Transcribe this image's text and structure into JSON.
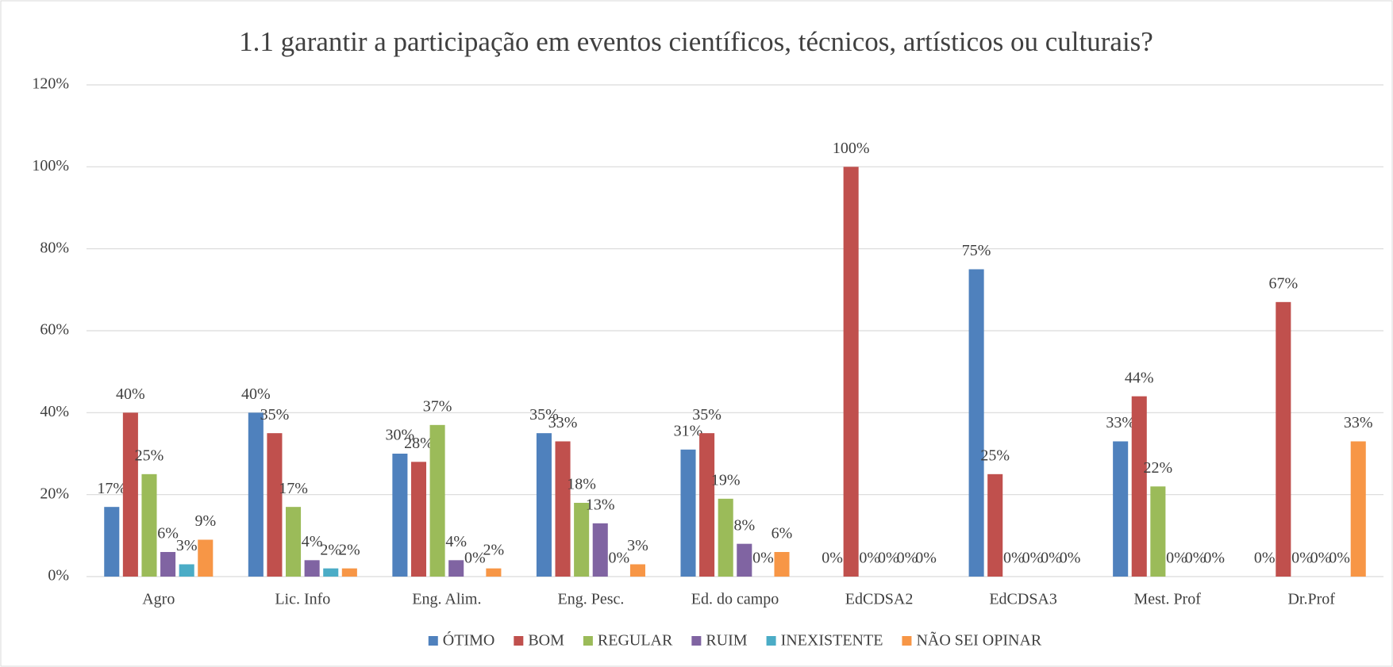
{
  "chart_data": {
    "type": "bar",
    "title": "1.1 garantir a participação em eventos científicos, técnicos, artísticos ou culturais?",
    "categories": [
      "Agro",
      "Lic. Info",
      "Eng. Alim.",
      "Eng. Pesc.",
      "Ed. do campo",
      "EdCDSA2",
      "EdCDSA3",
      "Mest. Prof",
      "Dr.Prof"
    ],
    "series": [
      {
        "name": "ÓTIMO",
        "color": "#4f81bd",
        "values": [
          17,
          40,
          30,
          35,
          31,
          0,
          75,
          33,
          0
        ],
        "value_labels": [
          "17%",
          "40%",
          "30%",
          "35%",
          "31%",
          "0%",
          "75%",
          "33%",
          "0%"
        ]
      },
      {
        "name": "BOM",
        "color": "#c0504d",
        "values": [
          40,
          35,
          28,
          33,
          35,
          100,
          25,
          44,
          67
        ],
        "value_labels": [
          "40%",
          "35%",
          "28%",
          "33%",
          "35%",
          "100%",
          "25%",
          "44%",
          "67%"
        ]
      },
      {
        "name": "REGULAR",
        "color": "#9bbb59",
        "values": [
          25,
          17,
          37,
          18,
          19,
          0,
          0,
          22,
          0
        ],
        "value_labels": [
          "25%",
          "17%",
          "37%",
          "18%",
          "19%",
          "0%",
          "0%",
          "22%",
          "0%"
        ]
      },
      {
        "name": "RUIM",
        "color": "#8064a2",
        "values": [
          6,
          4,
          4,
          13,
          8,
          0,
          0,
          0,
          0
        ],
        "value_labels": [
          "6%",
          "4%",
          "4%",
          "13%",
          "8%",
          "0%",
          "0%",
          "0%",
          "0%"
        ]
      },
      {
        "name": "INEXISTENTE",
        "color": "#4bacc6",
        "values": [
          3,
          2,
          0,
          0,
          0,
          0,
          0,
          0,
          0
        ],
        "value_labels": [
          "3%",
          "2%",
          "0%",
          "0%",
          "0%",
          "0%",
          "0%",
          "0%",
          "0%"
        ]
      },
      {
        "name": "NÃO SEI OPINAR",
        "color": "#f79646",
        "values": [
          9,
          2,
          2,
          3,
          6,
          0,
          0,
          0,
          33
        ],
        "value_labels": [
          "9%",
          "2%",
          "2%",
          "3%",
          "6%",
          "0%",
          "0%",
          "0%",
          "33%"
        ]
      }
    ],
    "ylim": [
      0,
      120
    ],
    "yticks": [
      {
        "value": 0,
        "label": "0%"
      },
      {
        "value": 20,
        "label": "20%"
      },
      {
        "value": 40,
        "label": "40%"
      },
      {
        "value": 60,
        "label": "60%"
      },
      {
        "value": 80,
        "label": "80%"
      },
      {
        "value": 100,
        "label": "100%"
      },
      {
        "value": 120,
        "label": "120%"
      }
    ],
    "grid": true,
    "legend": "bottom"
  }
}
